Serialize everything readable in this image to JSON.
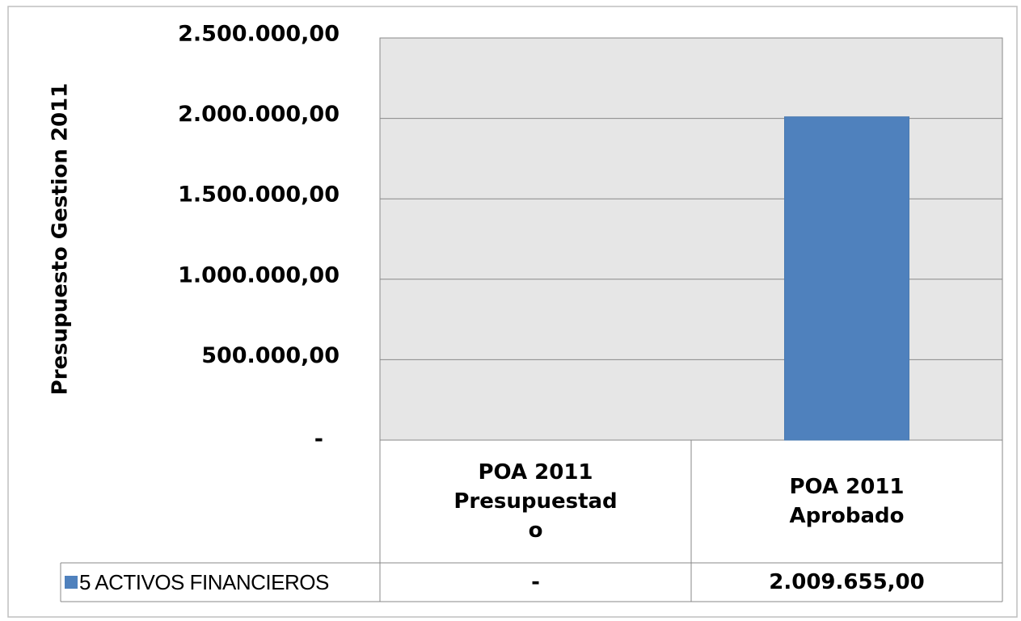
{
  "chart_data": {
    "type": "bar",
    "y_label": "Presupuesto Gestion 2011",
    "categories": [
      "POA 2011 Presupuestado",
      "POA 2011 Aprobado"
    ],
    "series": [
      {
        "name": "5 ACTIVOS FINANCIEROS",
        "color": "#4f81bd",
        "values": [
          0,
          2009655
        ],
        "value_labels": [
          "-",
          "2.009.655,00"
        ]
      }
    ],
    "ylim": [
      0,
      2500000
    ],
    "yticks": [
      {
        "value": 0,
        "label": "-"
      },
      {
        "value": 500000,
        "label": "500.000,00"
      },
      {
        "value": 1000000,
        "label": "1.000.000,00"
      },
      {
        "value": 1500000,
        "label": "1.500.000,00"
      },
      {
        "value": 2000000,
        "label": "2.000.000,00"
      },
      {
        "value": 2500000,
        "label": "2.500.000,00"
      }
    ],
    "grid": true,
    "data_table": true
  }
}
